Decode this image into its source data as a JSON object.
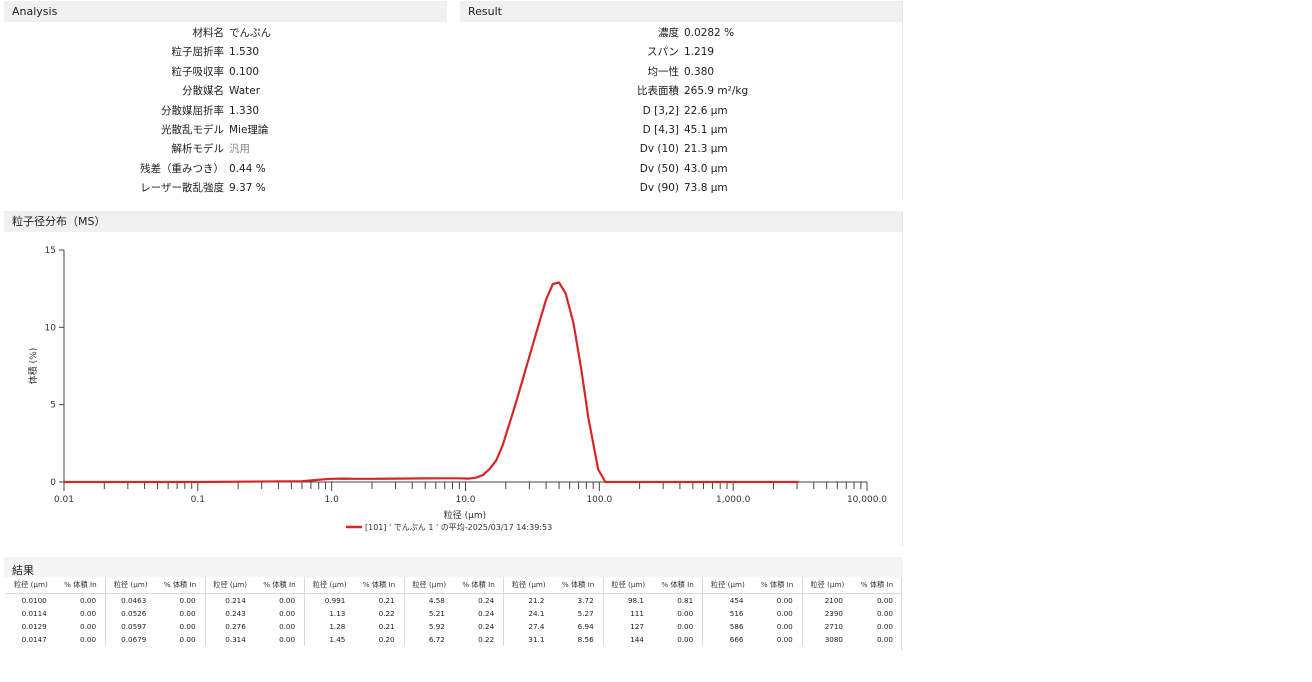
{
  "analysis": {
    "title": "Analysis",
    "rows": [
      {
        "label": "材料名",
        "value": "でんぷん"
      },
      {
        "label": "粒子屈折率",
        "value": "1.530"
      },
      {
        "label": "粒子吸収率",
        "value": "0.100"
      },
      {
        "label": "分散媒名",
        "value": "Water"
      },
      {
        "label": "分散媒屈折率",
        "value": "1.330"
      },
      {
        "label": "光散乱モデル",
        "value": "Mie理論"
      },
      {
        "label": "解析モデル",
        "value": "汎用",
        "muted": true
      },
      {
        "label": "残差（重みつき）",
        "value": "0.44 %"
      },
      {
        "label": "レーザー散乱強度",
        "value": "9.37 %"
      }
    ]
  },
  "result": {
    "title": "Result",
    "rows": [
      {
        "label": "濃度",
        "value": "0.0282 %"
      },
      {
        "label": "スパン",
        "value": "1.219"
      },
      {
        "label": "均一性",
        "value": "0.380"
      },
      {
        "label": "比表面積",
        "value": "265.9 m²/kg"
      },
      {
        "label": "D [3,2]",
        "value": "22.6 μm"
      },
      {
        "label": "D [4,3]",
        "value": "45.1 μm"
      },
      {
        "label": "Dv (10)",
        "value": "21.3 μm"
      },
      {
        "label": "Dv (50)",
        "value": "43.0 μm"
      },
      {
        "label": "Dv (90)",
        "value": "73.8 μm"
      }
    ]
  },
  "distribution": {
    "title": "粒子径分布（MS）"
  },
  "chart_data": {
    "type": "line",
    "xlabel": "粒径 (μm)",
    "ylabel": "体積 (%)",
    "x_scale": "log",
    "xlim": [
      0.01,
      10000
    ],
    "ylim": [
      0,
      15
    ],
    "x_ticks": [
      {
        "value": 0.01,
        "label": "0.01"
      },
      {
        "value": 0.1,
        "label": "0.1"
      },
      {
        "value": 1,
        "label": "1.0"
      },
      {
        "value": 10,
        "label": "10.0"
      },
      {
        "value": 100,
        "label": "100.0"
      },
      {
        "value": 1000,
        "label": "1,000.0"
      },
      {
        "value": 10000,
        "label": "10,000.0"
      }
    ],
    "y_ticks": [
      {
        "value": 0,
        "label": "0"
      },
      {
        "value": 5,
        "label": "5"
      },
      {
        "value": 10,
        "label": "10"
      },
      {
        "value": 15,
        "label": "15"
      }
    ],
    "grid": false,
    "legend_position": "bottom",
    "series": [
      {
        "name": "[101] ' でんぷん 1 ' の平均-2025/03/17 14:39:53",
        "color": "#d62728",
        "x": [
          0.01,
          0.1,
          0.6,
          0.75,
          0.9,
          1.0,
          1.2,
          1.5,
          2,
          3,
          5,
          7,
          9,
          10.5,
          12,
          13.5,
          15,
          17,
          19,
          21.2,
          24.1,
          27.4,
          31.1,
          35,
          40,
          45,
          50,
          56,
          64,
          73,
          83,
          98.1,
          111,
          127,
          144,
          200,
          500,
          1000,
          2000,
          3080
        ],
        "y": [
          0,
          0,
          0.05,
          0.12,
          0.18,
          0.21,
          0.22,
          0.21,
          0.21,
          0.22,
          0.23,
          0.24,
          0.24,
          0.22,
          0.28,
          0.45,
          0.8,
          1.4,
          2.4,
          3.72,
          5.27,
          6.94,
          8.56,
          10.1,
          11.8,
          12.8,
          12.9,
          12.2,
          10.3,
          7.4,
          4.1,
          0.81,
          0,
          0,
          0,
          0,
          0,
          0,
          0,
          0
        ]
      }
    ]
  },
  "results_table": {
    "title": "結果",
    "col_size": "粒径 (μm)",
    "col_vol": "% 体積 In",
    "groups": [
      {
        "size": [
          "0.0100",
          "0.0114",
          "0.0129",
          "0.0147"
        ],
        "vol": [
          "0.00",
          "0.00",
          "0.00",
          "0.00"
        ]
      },
      {
        "size": [
          "0.0463",
          "0.0526",
          "0.0597",
          "0.0679"
        ],
        "vol": [
          "0.00",
          "0.00",
          "0.00",
          "0.00"
        ]
      },
      {
        "size": [
          "0.214",
          "0.243",
          "0.276",
          "0.314"
        ],
        "vol": [
          "0.00",
          "0.00",
          "0.00",
          "0.00"
        ]
      },
      {
        "size": [
          "0.991",
          "1.13",
          "1.28",
          "1.45"
        ],
        "vol": [
          "0.21",
          "0.22",
          "0.21",
          "0.20"
        ]
      },
      {
        "size": [
          "4.58",
          "5.21",
          "5.92",
          "6.72"
        ],
        "vol": [
          "0.24",
          "0.24",
          "0.24",
          "0.22"
        ]
      },
      {
        "size": [
          "21.2",
          "24.1",
          "27.4",
          "31.1"
        ],
        "vol": [
          "3.72",
          "5.27",
          "6.94",
          "8.56"
        ]
      },
      {
        "size": [
          "98.1",
          "111",
          "127",
          "144"
        ],
        "vol": [
          "0.81",
          "0.00",
          "0.00",
          "0.00"
        ]
      },
      {
        "size": [
          "454",
          "516",
          "586",
          "666"
        ],
        "vol": [
          "0.00",
          "0.00",
          "0.00",
          "0.00"
        ]
      },
      {
        "size": [
          "2100",
          "2390",
          "2710",
          "3080"
        ],
        "vol": [
          "0.00",
          "0.00",
          "0.00",
          "0.00"
        ]
      }
    ]
  }
}
